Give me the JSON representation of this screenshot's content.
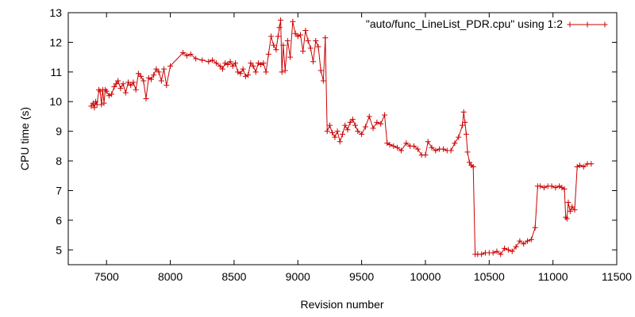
{
  "chart_data": {
    "type": "line",
    "xlabel": "Revision number",
    "ylabel": "CPU time (s)",
    "xlim": [
      7200,
      11500
    ],
    "ylim": [
      4.5,
      13
    ],
    "xticks": [
      7500,
      8000,
      8500,
      9000,
      9500,
      10000,
      10500,
      11000,
      11500
    ],
    "yticks": [
      5,
      6,
      7,
      8,
      9,
      10,
      11,
      12,
      13
    ],
    "grid": false,
    "legend_position": "top-right",
    "colors": {
      "series": "#cc0000",
      "axis": "#000000",
      "background": "#ffffff"
    },
    "series": [
      {
        "name": "\"auto/func_LineList_PDR.cpu\" using 1:2",
        "marker": "plus",
        "x": [
          7380,
          7395,
          7405,
          7415,
          7425,
          7440,
          7450,
          7460,
          7470,
          7480,
          7490,
          7500,
          7520,
          7540,
          7560,
          7575,
          7590,
          7610,
          7630,
          7650,
          7670,
          7690,
          7710,
          7730,
          7750,
          7770,
          7790,
          7810,
          7830,
          7850,
          7870,
          7890,
          7910,
          7930,
          7950,
          7970,
          8000,
          8100,
          8130,
          8160,
          8200,
          8250,
          8300,
          8330,
          8360,
          8390,
          8410,
          8430,
          8450,
          8470,
          8490,
          8510,
          8530,
          8550,
          8570,
          8590,
          8610,
          8630,
          8650,
          8670,
          8690,
          8710,
          8730,
          8750,
          8770,
          8790,
          8810,
          8830,
          8845,
          8855,
          8865,
          8875,
          8885,
          8900,
          8920,
          8940,
          8960,
          8980,
          9000,
          9020,
          9040,
          9060,
          9080,
          9100,
          9120,
          9140,
          9160,
          9180,
          9200,
          9215,
          9230,
          9250,
          9270,
          9290,
          9310,
          9330,
          9350,
          9370,
          9390,
          9410,
          9430,
          9450,
          9470,
          9500,
          9530,
          9560,
          9590,
          9620,
          9650,
          9680,
          9700,
          9720,
          9750,
          9780,
          9810,
          9850,
          9880,
          9910,
          9940,
          9970,
          10000,
          10020,
          10050,
          10080,
          10110,
          10140,
          10170,
          10200,
          10230,
          10260,
          10290,
          10300,
          10310,
          10320,
          10330,
          10345,
          10360,
          10375,
          10390,
          10410,
          10440,
          10470,
          10500,
          10530,
          10560,
          10590,
          10620,
          10650,
          10680,
          10710,
          10740,
          10770,
          10800,
          10830,
          10860,
          10880,
          10900,
          10930,
          10960,
          10990,
          11020,
          11050,
          11070,
          11090,
          11100,
          11110,
          11120,
          11135,
          11150,
          11170,
          11190,
          11210,
          11240,
          11270,
          11300
        ],
        "y": [
          9.85,
          9.95,
          9.8,
          10.0,
          9.9,
          10.4,
          10.35,
          9.9,
          10.4,
          9.95,
          10.4,
          10.35,
          10.2,
          10.25,
          10.5,
          10.6,
          10.7,
          10.45,
          10.6,
          10.3,
          10.65,
          10.55,
          10.65,
          10.4,
          10.95,
          10.85,
          10.7,
          10.1,
          10.8,
          10.75,
          10.9,
          11.1,
          11.0,
          10.7,
          11.1,
          10.55,
          11.2,
          11.65,
          11.55,
          11.6,
          11.45,
          11.4,
          11.35,
          11.4,
          11.3,
          11.2,
          11.1,
          11.3,
          11.25,
          11.35,
          11.2,
          11.3,
          11.0,
          10.95,
          11.1,
          10.85,
          10.9,
          11.3,
          11.2,
          11.0,
          11.3,
          11.25,
          11.3,
          11.0,
          11.6,
          12.2,
          11.9,
          11.75,
          12.2,
          12.5,
          12.75,
          11.0,
          11.9,
          11.05,
          12.05,
          11.5,
          12.7,
          12.3,
          12.2,
          12.25,
          11.7,
          12.4,
          12.05,
          11.8,
          11.35,
          12.05,
          11.85,
          11.05,
          10.7,
          12.15,
          9.0,
          9.2,
          8.95,
          8.8,
          9.0,
          8.65,
          8.9,
          9.2,
          9.05,
          9.3,
          9.4,
          9.2,
          9.0,
          8.9,
          9.15,
          9.5,
          9.1,
          9.3,
          9.25,
          9.55,
          8.6,
          8.55,
          8.5,
          8.45,
          8.35,
          8.6,
          8.5,
          8.5,
          8.4,
          8.2,
          8.2,
          8.65,
          8.45,
          8.35,
          8.4,
          8.4,
          8.35,
          8.35,
          8.6,
          8.8,
          9.2,
          9.65,
          9.3,
          8.9,
          8.3,
          7.95,
          7.85,
          7.8,
          4.85,
          4.85,
          4.85,
          4.9,
          4.9,
          4.9,
          4.95,
          4.85,
          5.05,
          5.0,
          4.95,
          5.1,
          5.3,
          5.2,
          5.3,
          5.35,
          5.75,
          7.15,
          7.15,
          7.1,
          7.15,
          7.15,
          7.1,
          7.15,
          7.1,
          7.05,
          6.1,
          6.05,
          6.6,
          6.3,
          6.45,
          6.35,
          7.8,
          7.85,
          7.8,
          7.9,
          7.9
        ]
      }
    ]
  }
}
